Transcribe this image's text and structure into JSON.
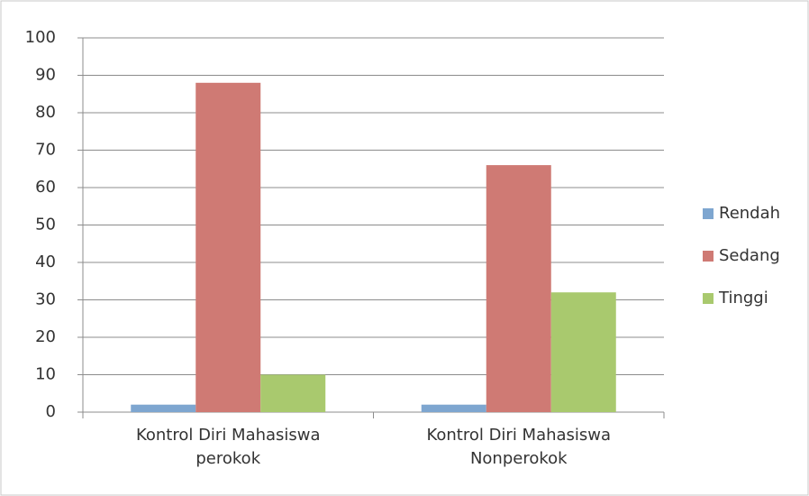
{
  "chart_data": {
    "type": "bar",
    "categories": [
      "Kontrol Diri Mahasiswa perokok",
      "Kontrol Diri Mahasiswa Nonperokok"
    ],
    "series": [
      {
        "name": "Rendah",
        "color": "#7ea6d0",
        "values": [
          2,
          2
        ]
      },
      {
        "name": "Sedang",
        "color": "#cf7a74",
        "values": [
          88,
          66
        ]
      },
      {
        "name": "Tinggi",
        "color": "#a9c96e",
        "values": [
          10,
          32
        ]
      }
    ],
    "ylim": [
      0,
      100
    ],
    "yticks": [
      0,
      10,
      20,
      30,
      40,
      50,
      60,
      70,
      80,
      90,
      100
    ],
    "grid": true,
    "legend": "right"
  }
}
